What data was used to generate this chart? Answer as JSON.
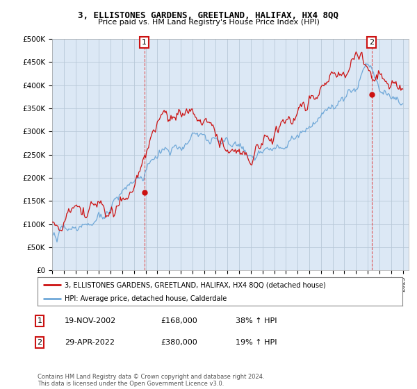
{
  "title": "3, ELLISTONES GARDENS, GREETLAND, HALIFAX, HX4 8QQ",
  "subtitle": "Price paid vs. HM Land Registry's House Price Index (HPI)",
  "ylim": [
    0,
    500000
  ],
  "yticks": [
    0,
    50000,
    100000,
    150000,
    200000,
    250000,
    300000,
    350000,
    400000,
    450000,
    500000
  ],
  "ytick_labels": [
    "£0",
    "£50K",
    "£100K",
    "£150K",
    "£200K",
    "£250K",
    "£300K",
    "£350K",
    "£400K",
    "£450K",
    "£500K"
  ],
  "hpi_color": "#6fa8d8",
  "price_color": "#cc1111",
  "bg_color": "#ffffff",
  "plot_bg_color": "#dce8f5",
  "grid_color": "#b8c8d8",
  "sale1_date_num": 2002.89,
  "sale1_price": 168000,
  "sale1_label": "1",
  "sale2_date_num": 2022.33,
  "sale2_price": 380000,
  "sale2_label": "2",
  "legend_line1": "3, ELLISTONES GARDENS, GREETLAND, HALIFAX, HX4 8QQ (detached house)",
  "legend_line2": "HPI: Average price, detached house, Calderdale",
  "table_row1_label": "1",
  "table_row1_date": "19-NOV-2002",
  "table_row1_price": "£168,000",
  "table_row1_hpi": "38% ↑ HPI",
  "table_row2_label": "2",
  "table_row2_date": "29-APR-2022",
  "table_row2_price": "£380,000",
  "table_row2_hpi": "19% ↑ HPI",
  "footer": "Contains HM Land Registry data © Crown copyright and database right 2024.\nThis data is licensed under the Open Government Licence v3.0.",
  "xmin": 1995.0,
  "xmax": 2025.5
}
